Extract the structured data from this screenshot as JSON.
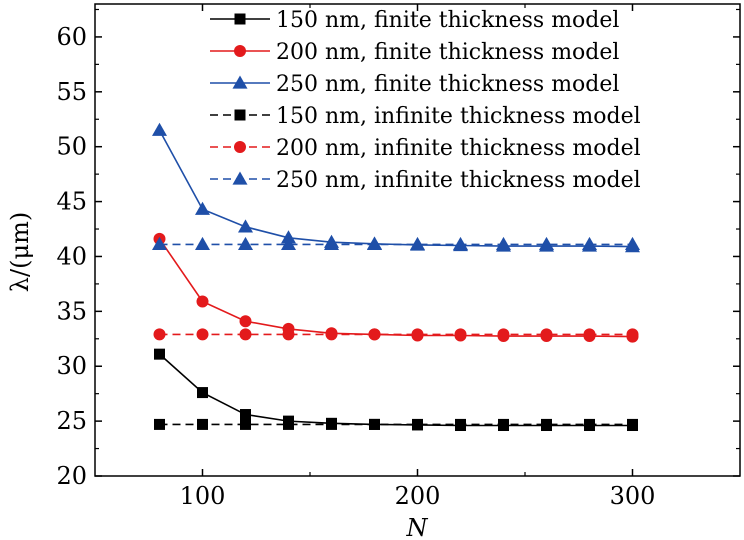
{
  "chart_data": {
    "type": "line",
    "xlabel": "N",
    "ylabel": "λ/(μm)",
    "xlim": [
      50,
      350
    ],
    "ylim": [
      20,
      63
    ],
    "x_ticks": [
      100,
      200,
      300
    ],
    "y_ticks": [
      20,
      25,
      30,
      35,
      40,
      45,
      50,
      55,
      60
    ],
    "legend_position": "top-right",
    "grid": false,
    "x": [
      80,
      100,
      120,
      140,
      160,
      180,
      200,
      220,
      240,
      260,
      280,
      300
    ],
    "series": [
      {
        "name": "150 nm, finite thickness model",
        "color": "#000000",
        "marker": "square",
        "dash": false,
        "values": [
          31.1,
          27.6,
          25.6,
          25.0,
          24.8,
          24.7,
          24.65,
          24.6,
          24.6,
          24.6,
          24.6,
          24.6
        ]
      },
      {
        "name": "200 nm, finite thickness model",
        "color": "#e31a1c",
        "marker": "circle",
        "dash": false,
        "values": [
          41.6,
          35.9,
          34.1,
          33.4,
          33.0,
          32.9,
          32.8,
          32.8,
          32.75,
          32.75,
          32.75,
          32.7
        ]
      },
      {
        "name": "250 nm, finite thickness model",
        "color": "#1f4fa8",
        "marker": "triangle",
        "dash": false,
        "values": [
          51.5,
          44.3,
          42.7,
          41.7,
          41.3,
          41.15,
          41.05,
          41.0,
          40.95,
          40.95,
          40.95,
          40.9
        ]
      },
      {
        "name": "150 nm, infinite thickness model",
        "color": "#000000",
        "marker": "square",
        "dash": true,
        "values": [
          24.7,
          24.7,
          24.7,
          24.7,
          24.7,
          24.7,
          24.7,
          24.7,
          24.7,
          24.7,
          24.7,
          24.7
        ]
      },
      {
        "name": "200 nm, infinite thickness model",
        "color": "#e31a1c",
        "marker": "circle",
        "dash": true,
        "values": [
          32.9,
          32.9,
          32.9,
          32.9,
          32.9,
          32.9,
          32.9,
          32.9,
          32.9,
          32.9,
          32.9,
          32.9
        ]
      },
      {
        "name": "250 nm, infinite thickness model",
        "color": "#1f4fa8",
        "marker": "triangle",
        "dash": true,
        "values": [
          41.1,
          41.1,
          41.1,
          41.1,
          41.1,
          41.1,
          41.1,
          41.1,
          41.1,
          41.1,
          41.1,
          41.1
        ]
      }
    ]
  }
}
